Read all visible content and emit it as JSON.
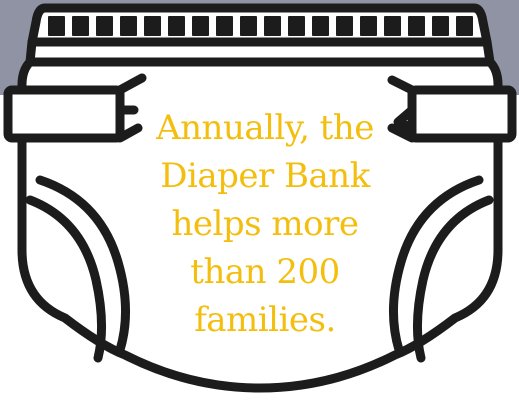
{
  "message": {
    "lines": [
      "Annually, the",
      "Diaper Bank",
      "helps more",
      "than 200",
      "families."
    ]
  },
  "colors": {
    "band": "#8f93a3",
    "outline": "#1c1c1c",
    "diaper": "#ffffff",
    "text": "#f4be0e"
  },
  "icon": "diaper-icon"
}
